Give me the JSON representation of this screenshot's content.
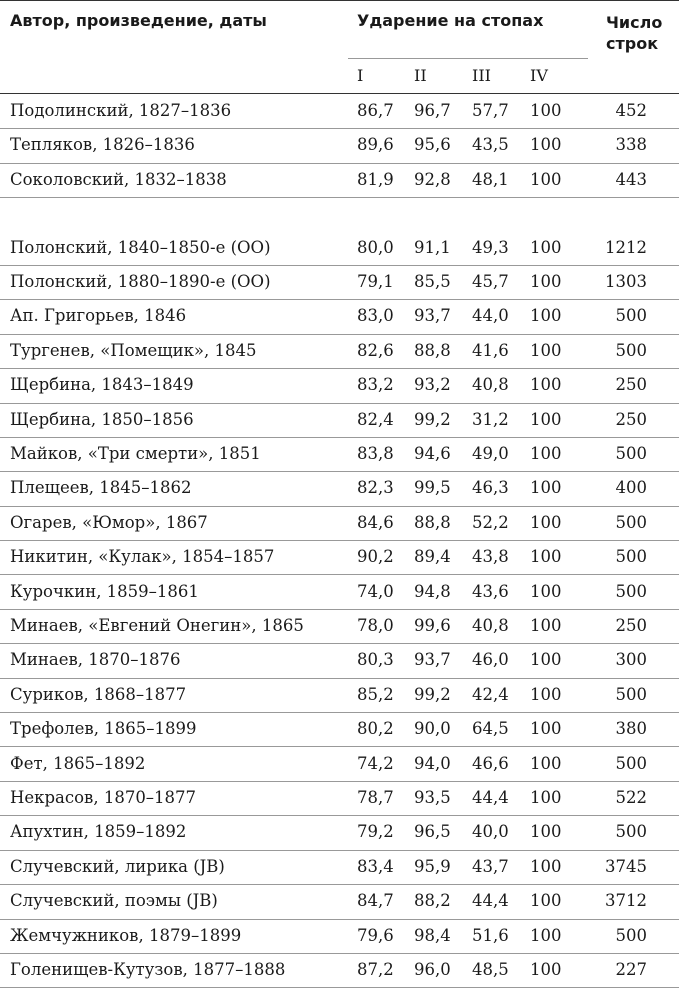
{
  "header": {
    "author_col": "Автор, произведение, даты",
    "stress_col": "Ударение на стопах",
    "lines_col_1": "Число",
    "lines_col_2": "строк",
    "feet": [
      "I",
      "II",
      "III",
      "IV"
    ]
  },
  "group1": [
    {
      "author": "Подолинский, 1827–1836",
      "f1": "86,7",
      "f2": "96,7",
      "f3": "57,7",
      "f4": "100",
      "n": "452"
    },
    {
      "author": "Тепляков, 1826–1836",
      "f1": "89,6",
      "f2": "95,6",
      "f3": "43,5",
      "f4": "100",
      "n": "338"
    },
    {
      "author": "Соколовский, 1832–1838",
      "f1": "81,9",
      "f2": "92,8",
      "f3": "48,1",
      "f4": "100",
      "n": "443"
    }
  ],
  "group2": [
    {
      "author": "Полонский, 1840–1850-е (ОО)",
      "f1": "80,0",
      "f2": "91,1",
      "f3": "49,3",
      "f4": "100",
      "n": "1212"
    },
    {
      "author": "Полонский, 1880–1890-е (ОО)",
      "f1": "79,1",
      "f2": "85,5",
      "f3": "45,7",
      "f4": "100",
      "n": "1303"
    },
    {
      "author": "Ап. Григорьев, 1846",
      "f1": "83,0",
      "f2": "93,7",
      "f3": "44,0",
      "f4": "100",
      "n": "500"
    },
    {
      "author": "Тургенев, «Помещик», 1845",
      "f1": "82,6",
      "f2": "88,8",
      "f3": "41,6",
      "f4": "100",
      "n": "500"
    },
    {
      "author": "Щербина, 1843–1849",
      "f1": "83,2",
      "f2": "93,2",
      "f3": "40,8",
      "f4": "100",
      "n": "250"
    },
    {
      "author": "Щербина, 1850–1856",
      "f1": "82,4",
      "f2": "99,2",
      "f3": "31,2",
      "f4": "100",
      "n": "250"
    },
    {
      "author": "Майков, «Три смерти», 1851",
      "f1": "83,8",
      "f2": "94,6",
      "f3": "49,0",
      "f4": "100",
      "n": "500"
    },
    {
      "author": "Плещеев, 1845–1862",
      "f1": "82,3",
      "f2": "99,5",
      "f3": "46,3",
      "f4": "100",
      "n": "400"
    },
    {
      "author": "Огарев, «Юмор», 1867",
      "f1": "84,6",
      "f2": "88,8",
      "f3": "52,2",
      "f4": "100",
      "n": "500"
    },
    {
      "author": "Никитин, «Кулак», 1854–1857",
      "f1": "90,2",
      "f2": "89,4",
      "f3": "43,8",
      "f4": "100",
      "n": "500"
    },
    {
      "author": "Курочкин, 1859–1861",
      "f1": "74,0",
      "f2": "94,8",
      "f3": "43,6",
      "f4": "100",
      "n": "500"
    },
    {
      "author": "Минаев, «Евгений Онегин», 1865",
      "f1": "78,0",
      "f2": "99,6",
      "f3": "40,8",
      "f4": "100",
      "n": "250"
    },
    {
      "author": "Минаев, 1870–1876",
      "f1": "80,3",
      "f2": "93,7",
      "f3": "46,0",
      "f4": "100",
      "n": "300"
    },
    {
      "author": "Суриков, 1868–1877",
      "f1": "85,2",
      "f2": "99,2",
      "f3": "42,4",
      "f4": "100",
      "n": "500"
    },
    {
      "author": "Трефолев, 1865–1899",
      "f1": "80,2",
      "f2": "90,0",
      "f3": "64,5",
      "f4": "100",
      "n": "380"
    },
    {
      "author": "Фет, 1865–1892",
      "f1": "74,2",
      "f2": "94,0",
      "f3": "46,6",
      "f4": "100",
      "n": "500"
    },
    {
      "author": "Некрасов, 1870–1877",
      "f1": "78,7",
      "f2": "93,5",
      "f3": "44,4",
      "f4": "100",
      "n": "522"
    },
    {
      "author": "Апухтин, 1859–1892",
      "f1": "79,2",
      "f2": "96,5",
      "f3": "40,0",
      "f4": "100",
      "n": "500"
    },
    {
      "author": "Случевский, лирика (JB)",
      "f1": "83,4",
      "f2": "95,9",
      "f3": "43,7",
      "f4": "100",
      "n": "3745"
    },
    {
      "author": "Случевский, поэмы (JB)",
      "f1": "84,7",
      "f2": "88,2",
      "f3": "44,4",
      "f4": "100",
      "n": "3712"
    },
    {
      "author": "Жемчужников, 1879–1899",
      "f1": "79,6",
      "f2": "98,4",
      "f3": "51,6",
      "f4": "100",
      "n": "500"
    },
    {
      "author": "Голенищев-Кутузов, 1877–1888",
      "f1": "87,2",
      "f2": "96,0",
      "f3": "48,5",
      "f4": "100",
      "n": "227"
    }
  ]
}
